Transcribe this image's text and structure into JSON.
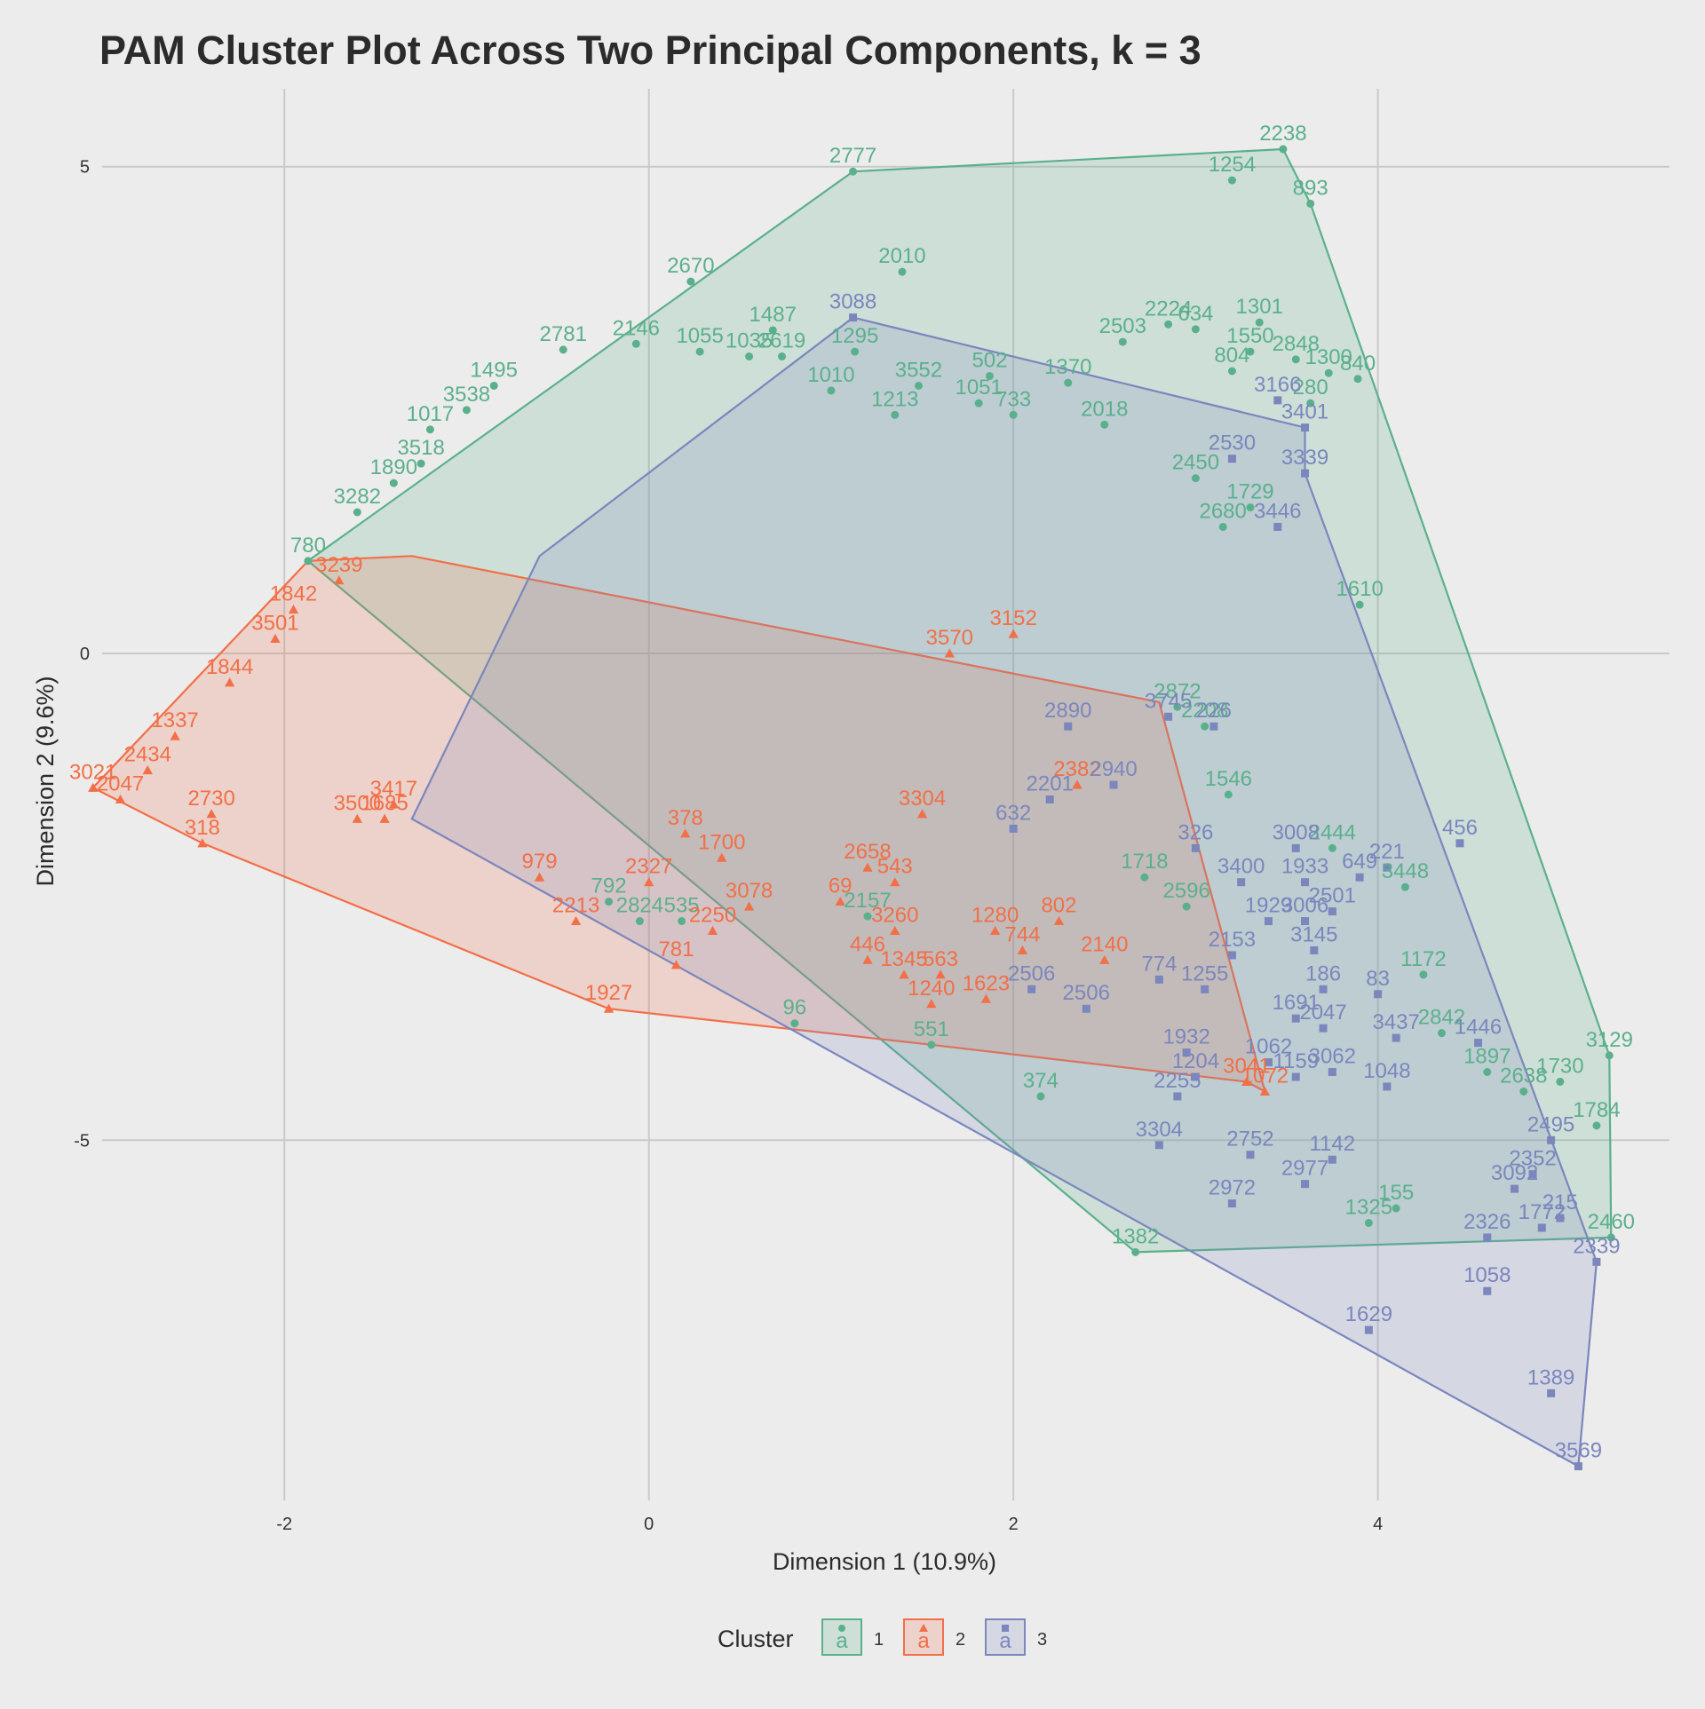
{
  "chart_data": {
    "type": "scatter",
    "title": "PAM Cluster Plot Across Two Principal Components, k = 3",
    "xlabel": "Dimension 1 (10.9%)",
    "ylabel": "Dimension 2 (9.6%)",
    "xlim": [
      -3.0,
      5.6
    ],
    "ylim": [
      -8.7,
      5.8
    ],
    "xticks": [
      -2,
      0,
      2,
      4
    ],
    "yticks": [
      -5,
      0,
      5
    ],
    "xtick_labels": [
      "-2",
      "0",
      "2",
      "4"
    ],
    "ytick_labels": [
      "-5",
      "0",
      "5"
    ],
    "grid": true,
    "legend": {
      "title": "Cluster",
      "position": "bottom",
      "entries": [
        "1",
        "2",
        "3"
      ],
      "key_letter": "a"
    },
    "colors": {
      "1": "#5bb08c",
      "2": "#f26f47",
      "3": "#7b86bd"
    },
    "series": [
      {
        "name": "1",
        "shape": "circle",
        "color": "#5bb08c",
        "hull": [
          [
            -1.87,
            0.95
          ],
          [
            1.12,
            4.95
          ],
          [
            3.48,
            5.18
          ],
          [
            3.63,
            4.62
          ],
          [
            5.27,
            -4.13
          ],
          [
            5.28,
            -6.0
          ],
          [
            2.67,
            -6.15
          ],
          [
            -1.87,
            0.95
          ]
        ],
        "points": [
          {
            "x": 1.12,
            "y": 4.95,
            "label": "2777"
          },
          {
            "x": 3.48,
            "y": 5.18,
            "label": "2238"
          },
          {
            "x": 3.2,
            "y": 4.86,
            "label": "1254"
          },
          {
            "x": 3.63,
            "y": 4.62,
            "label": "893"
          },
          {
            "x": 1.39,
            "y": 3.92,
            "label": "2010"
          },
          {
            "x": 0.23,
            "y": 3.82,
            "label": "2670"
          },
          {
            "x": -0.47,
            "y": 3.12,
            "label": "2781"
          },
          {
            "x": -0.07,
            "y": 3.18,
            "label": "2146"
          },
          {
            "x": 0.68,
            "y": 3.32,
            "label": "1487"
          },
          {
            "x": 1.87,
            "y": 2.85,
            "label": "502"
          },
          {
            "x": 2.6,
            "y": 3.2,
            "label": "2503"
          },
          {
            "x": 2.85,
            "y": 3.38,
            "label": "2224"
          },
          {
            "x": 3.0,
            "y": 3.33,
            "label": "634"
          },
          {
            "x": 3.35,
            "y": 3.4,
            "label": "1301"
          },
          {
            "x": 3.55,
            "y": 3.02,
            "label": "2848"
          },
          {
            "x": 3.73,
            "y": 2.88,
            "label": "1300"
          },
          {
            "x": 3.89,
            "y": 2.82,
            "label": "840"
          },
          {
            "x": 3.63,
            "y": 2.57,
            "label": "280"
          },
          {
            "x": 3.3,
            "y": 3.1,
            "label": "1550"
          },
          {
            "x": 3.2,
            "y": 2.9,
            "label": "804"
          },
          {
            "x": 2.3,
            "y": 2.78,
            "label": "1370"
          },
          {
            "x": 1.48,
            "y": 2.75,
            "label": "3552"
          },
          {
            "x": 1.13,
            "y": 3.1,
            "label": "1295"
          },
          {
            "x": 0.55,
            "y": 3.05,
            "label": "1035"
          },
          {
            "x": 0.28,
            "y": 3.1,
            "label": "1055"
          },
          {
            "x": 0.73,
            "y": 3.05,
            "label": "2619"
          },
          {
            "x": 1.0,
            "y": 2.7,
            "label": "1010"
          },
          {
            "x": 1.35,
            "y": 2.45,
            "label": "1213"
          },
          {
            "x": 1.81,
            "y": 2.57,
            "label": "1051"
          },
          {
            "x": -1.2,
            "y": 2.3,
            "label": "1017"
          },
          {
            "x": -0.85,
            "y": 2.75,
            "label": "1495"
          },
          {
            "x": -1.0,
            "y": 2.5,
            "label": "3538"
          },
          {
            "x": -1.25,
            "y": 1.95,
            "label": "3518"
          },
          {
            "x": -1.4,
            "y": 1.75,
            "label": "1890"
          },
          {
            "x": -1.6,
            "y": 1.45,
            "label": "3282"
          },
          {
            "x": -1.87,
            "y": 0.95,
            "label": "780"
          },
          {
            "x": 3.0,
            "y": 1.8,
            "label": "2450"
          },
          {
            "x": 3.3,
            "y": 1.5,
            "label": "1729"
          },
          {
            "x": 3.15,
            "y": 1.3,
            "label": "2680"
          },
          {
            "x": 2.0,
            "y": 2.45,
            "label": "733"
          },
          {
            "x": 2.5,
            "y": 2.35,
            "label": "2018"
          },
          {
            "x": 3.9,
            "y": 0.5,
            "label": "1610"
          },
          {
            "x": 2.9,
            "y": -0.55,
            "label": "2872"
          },
          {
            "x": 3.05,
            "y": -0.75,
            "label": "2208"
          },
          {
            "x": 3.18,
            "y": -1.45,
            "label": "1546"
          },
          {
            "x": 3.75,
            "y": -2.0,
            "label": "2444"
          },
          {
            "x": 4.15,
            "y": -2.4,
            "label": "3448"
          },
          {
            "x": 4.25,
            "y": -3.3,
            "label": "1172"
          },
          {
            "x": 4.35,
            "y": -3.9,
            "label": "2842"
          },
          {
            "x": 4.6,
            "y": -4.3,
            "label": "1897"
          },
          {
            "x": 4.8,
            "y": -4.5,
            "label": "2638"
          },
          {
            "x": 5.0,
            "y": -4.4,
            "label": "1730"
          },
          {
            "x": 5.27,
            "y": -4.13,
            "label": "3129"
          },
          {
            "x": 5.2,
            "y": -4.85,
            "label": "1784"
          },
          {
            "x": 5.28,
            "y": -6.0,
            "label": "2460"
          },
          {
            "x": 4.1,
            "y": -5.7,
            "label": "155"
          },
          {
            "x": 3.95,
            "y": -5.85,
            "label": "1325"
          },
          {
            "x": 2.67,
            "y": -6.15,
            "label": "1382"
          },
          {
            "x": 2.15,
            "y": -4.55,
            "label": "374"
          },
          {
            "x": 1.55,
            "y": -4.02,
            "label": "551"
          },
          {
            "x": 0.8,
            "y": -3.8,
            "label": "96"
          },
          {
            "x": -0.22,
            "y": -2.55,
            "label": "792"
          },
          {
            "x": -0.05,
            "y": -2.75,
            "label": "2824"
          },
          {
            "x": 0.18,
            "y": -2.75,
            "label": "535"
          },
          {
            "x": 1.2,
            "y": -2.7,
            "label": "2157"
          },
          {
            "x": 2.72,
            "y": -2.3,
            "label": "1718"
          },
          {
            "x": 2.95,
            "y": -2.6,
            "label": "2596"
          }
        ]
      },
      {
        "name": "2",
        "shape": "triangle",
        "color": "#f26f47",
        "hull": [
          [
            -3.05,
            -1.38
          ],
          [
            -1.87,
            0.95
          ],
          [
            -1.3,
            1.0
          ],
          [
            2.8,
            -0.5
          ],
          [
            3.38,
            -4.5
          ],
          [
            3.28,
            -4.4
          ],
          [
            1.55,
            -4.02
          ],
          [
            -0.22,
            -3.65
          ],
          [
            -2.45,
            -1.95
          ],
          [
            -3.05,
            -1.38
          ]
        ],
        "points": [
          {
            "x": -3.05,
            "y": -1.38,
            "label": "3021"
          },
          {
            "x": -2.9,
            "y": -1.5,
            "label": "2047"
          },
          {
            "x": -2.75,
            "y": -1.2,
            "label": "2434"
          },
          {
            "x": -2.6,
            "y": -0.85,
            "label": "1337"
          },
          {
            "x": -2.45,
            "y": -1.95,
            "label": "318"
          },
          {
            "x": -2.4,
            "y": -1.65,
            "label": "2730"
          },
          {
            "x": -2.3,
            "y": -0.3,
            "label": "1844"
          },
          {
            "x": -2.05,
            "y": 0.15,
            "label": "3501"
          },
          {
            "x": -1.95,
            "y": 0.45,
            "label": "1842"
          },
          {
            "x": -1.7,
            "y": 0.75,
            "label": "3239"
          },
          {
            "x": -1.45,
            "y": -1.7,
            "label": "1685"
          },
          {
            "x": -1.6,
            "y": -1.7,
            "label": "3500"
          },
          {
            "x": -1.4,
            "y": -1.55,
            "label": "3417"
          },
          {
            "x": -0.6,
            "y": -2.3,
            "label": "979"
          },
          {
            "x": -0.4,
            "y": -2.75,
            "label": "2213"
          },
          {
            "x": -0.22,
            "y": -3.65,
            "label": "1927"
          },
          {
            "x": 0.15,
            "y": -3.2,
            "label": "781"
          },
          {
            "x": 0.35,
            "y": -2.85,
            "label": "2250"
          },
          {
            "x": 0.55,
            "y": -2.6,
            "label": "3078"
          },
          {
            "x": 0.0,
            "y": -2.35,
            "label": "2327"
          },
          {
            "x": 0.4,
            "y": -2.1,
            "label": "1700"
          },
          {
            "x": 0.2,
            "y": -1.85,
            "label": "378"
          },
          {
            "x": 1.05,
            "y": -2.55,
            "label": "69"
          },
          {
            "x": 1.2,
            "y": -2.2,
            "label": "2658"
          },
          {
            "x": 1.35,
            "y": -2.35,
            "label": "543"
          },
          {
            "x": 1.35,
            "y": -2.85,
            "label": "3260"
          },
          {
            "x": 1.2,
            "y": -3.15,
            "label": "446"
          },
          {
            "x": 1.4,
            "y": -3.3,
            "label": "1345"
          },
          {
            "x": 1.6,
            "y": -3.3,
            "label": "563"
          },
          {
            "x": 1.55,
            "y": -3.6,
            "label": "1240"
          },
          {
            "x": 1.85,
            "y": -3.55,
            "label": "1623"
          },
          {
            "x": 1.5,
            "y": -1.65,
            "label": "3304"
          },
          {
            "x": 1.65,
            "y": 0.0,
            "label": "3570"
          },
          {
            "x": 2.0,
            "y": 0.2,
            "label": "3152"
          },
          {
            "x": 2.35,
            "y": -1.35,
            "label": "2382"
          },
          {
            "x": 2.25,
            "y": -2.75,
            "label": "802"
          },
          {
            "x": 1.9,
            "y": -2.85,
            "label": "1280"
          },
          {
            "x": 2.05,
            "y": -3.05,
            "label": "744"
          },
          {
            "x": 2.5,
            "y": -3.15,
            "label": "2140"
          },
          {
            "x": 3.28,
            "y": -4.4,
            "label": "3041"
          },
          {
            "x": 3.38,
            "y": -4.5,
            "label": "1072"
          }
        ]
      },
      {
        "name": "3",
        "shape": "square",
        "color": "#7b86bd",
        "hull": [
          [
            -1.3,
            -1.7
          ],
          [
            -0.6,
            1.0
          ],
          [
            1.12,
            3.45
          ],
          [
            3.6,
            2.32
          ],
          [
            3.6,
            1.85
          ],
          [
            5.15,
            -6.0
          ],
          [
            5.2,
            -6.25
          ],
          [
            5.1,
            -8.35
          ],
          [
            -1.3,
            -1.7
          ]
        ],
        "points": [
          {
            "x": 1.12,
            "y": 3.45,
            "label": "3088"
          },
          {
            "x": 3.6,
            "y": 2.32,
            "label": "3401"
          },
          {
            "x": 3.6,
            "y": 1.85,
            "label": "3339"
          },
          {
            "x": 3.45,
            "y": 1.3,
            "label": "3446"
          },
          {
            "x": 3.2,
            "y": 2.0,
            "label": "2530"
          },
          {
            "x": 3.45,
            "y": 2.6,
            "label": "3166"
          },
          {
            "x": 2.85,
            "y": -0.65,
            "label": "3745"
          },
          {
            "x": 3.1,
            "y": -0.75,
            "label": "226"
          },
          {
            "x": 2.3,
            "y": -0.75,
            "label": "2890"
          },
          {
            "x": 2.55,
            "y": -1.35,
            "label": "2940"
          },
          {
            "x": 2.2,
            "y": -1.5,
            "label": "2201"
          },
          {
            "x": 2.0,
            "y": -1.8,
            "label": "632"
          },
          {
            "x": 3.0,
            "y": -2.0,
            "label": "326"
          },
          {
            "x": 3.55,
            "y": -2.0,
            "label": "3008"
          },
          {
            "x": 3.25,
            "y": -2.35,
            "label": "3400"
          },
          {
            "x": 3.6,
            "y": -2.35,
            "label": "1933"
          },
          {
            "x": 3.9,
            "y": -2.3,
            "label": "649"
          },
          {
            "x": 4.05,
            "y": -2.2,
            "label": "221"
          },
          {
            "x": 4.45,
            "y": -1.95,
            "label": "456"
          },
          {
            "x": 3.75,
            "y": -2.65,
            "label": "2501"
          },
          {
            "x": 3.4,
            "y": -2.75,
            "label": "1929"
          },
          {
            "x": 3.6,
            "y": -2.75,
            "label": "3006"
          },
          {
            "x": 3.65,
            "y": -3.05,
            "label": "3145"
          },
          {
            "x": 3.2,
            "y": -3.1,
            "label": "2153"
          },
          {
            "x": 4.0,
            "y": -3.5,
            "label": "83"
          },
          {
            "x": 3.7,
            "y": -3.45,
            "label": "186"
          },
          {
            "x": 3.55,
            "y": -3.75,
            "label": "1691"
          },
          {
            "x": 3.7,
            "y": -3.85,
            "label": "2047"
          },
          {
            "x": 4.1,
            "y": -3.95,
            "label": "3437"
          },
          {
            "x": 4.55,
            "y": -4.0,
            "label": "1446"
          },
          {
            "x": 3.75,
            "y": -4.3,
            "label": "3062"
          },
          {
            "x": 3.4,
            "y": -4.2,
            "label": "1062"
          },
          {
            "x": 3.55,
            "y": -4.35,
            "label": "1159"
          },
          {
            "x": 4.05,
            "y": -4.45,
            "label": "1048"
          },
          {
            "x": 2.95,
            "y": -4.1,
            "label": "1932"
          },
          {
            "x": 3.0,
            "y": -4.35,
            "label": "1204"
          },
          {
            "x": 2.9,
            "y": -4.55,
            "label": "2255"
          },
          {
            "x": 2.8,
            "y": -5.05,
            "label": "3304"
          },
          {
            "x": 3.3,
            "y": -5.15,
            "label": "2752"
          },
          {
            "x": 3.75,
            "y": -5.2,
            "label": "1142"
          },
          {
            "x": 3.6,
            "y": -5.45,
            "label": "2977"
          },
          {
            "x": 3.2,
            "y": -5.65,
            "label": "2972"
          },
          {
            "x": 4.95,
            "y": -5.0,
            "label": "2495"
          },
          {
            "x": 4.85,
            "y": -5.35,
            "label": "2352"
          },
          {
            "x": 4.75,
            "y": -5.5,
            "label": "3092"
          },
          {
            "x": 5.0,
            "y": -5.8,
            "label": "215"
          },
          {
            "x": 4.9,
            "y": -5.9,
            "label": "1772"
          },
          {
            "x": 4.6,
            "y": -6.0,
            "label": "2326"
          },
          {
            "x": 5.2,
            "y": -6.25,
            "label": "2339"
          },
          {
            "x": 4.6,
            "y": -6.55,
            "label": "1058"
          },
          {
            "x": 3.95,
            "y": -6.95,
            "label": "1629"
          },
          {
            "x": 4.95,
            "y": -7.6,
            "label": "1389"
          },
          {
            "x": 5.1,
            "y": -8.35,
            "label": "3569"
          },
          {
            "x": 2.1,
            "y": -3.45,
            "label": "2506"
          },
          {
            "x": 2.4,
            "y": -3.65,
            "label": "2506"
          },
          {
            "x": 2.8,
            "y": -3.35,
            "label": "774"
          },
          {
            "x": 3.05,
            "y": -3.45,
            "label": "1255"
          }
        ]
      }
    ]
  }
}
